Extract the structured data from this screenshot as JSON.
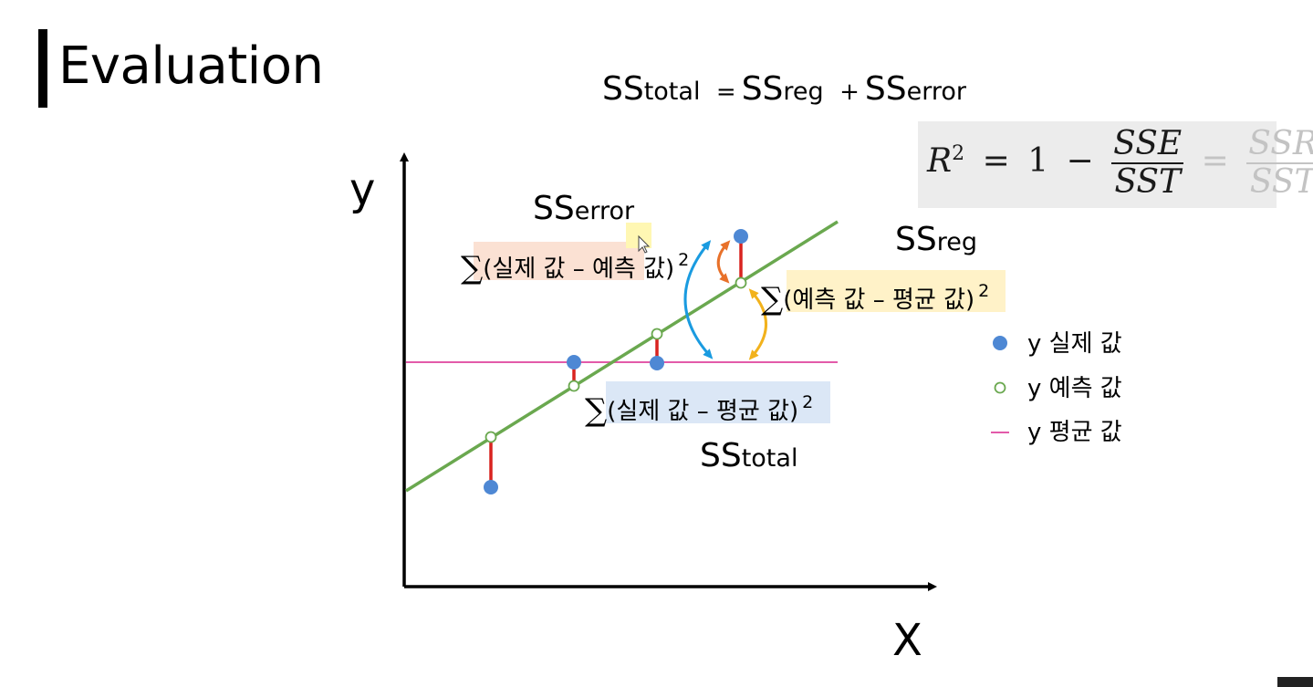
{
  "slide": {
    "title": "Evaluation",
    "equation": {
      "lhs_main": "SS",
      "lhs_sub": "total",
      "eq": "=",
      "t1_main": "SS",
      "t1_sub": "reg",
      "plus": "+",
      "t2_main": "SS",
      "t2_sub": "error"
    },
    "r2_formula": {
      "lhs": "R",
      "lhs_sup": "2",
      "eq1": "=",
      "one": "1",
      "minus": "−",
      "frac1_num": "SSE",
      "frac1_den": "SST",
      "eq2": "=",
      "frac2_num": "SSR",
      "frac2_den": "SST"
    },
    "axes": {
      "y_label": "y",
      "x_label": "X"
    },
    "labels": {
      "ss_error": {
        "main": "SS",
        "sub": "error"
      },
      "ss_reg": {
        "main": "SS",
        "sub": "reg"
      },
      "ss_total": {
        "main": "SS",
        "sub": "total"
      }
    },
    "formulas": {
      "error": {
        "sum": "∑",
        "body": "(실제 값 – 예측 값)",
        "sup": "2"
      },
      "reg": {
        "sum": "∑",
        "body": "(예측 값 – 평균 값)",
        "sup": "2"
      },
      "total": {
        "sum": "∑",
        "body": "(실제 값 – 평균 값)",
        "sup": "2"
      }
    },
    "legend": {
      "actual": "y 실제 값",
      "predicted": "y 예측 값",
      "mean": "y 평균 값"
    },
    "colors": {
      "regression_line": "#6aa84f",
      "mean_line": "#e35aa9",
      "residual": "#d9231f",
      "actual_point": "#4e88d4",
      "predicted_point_stroke": "#6aa84f",
      "arrow_total": "#1a9be0",
      "arrow_error": "#e8712a",
      "arrow_reg": "#f2b21c"
    }
  }
}
